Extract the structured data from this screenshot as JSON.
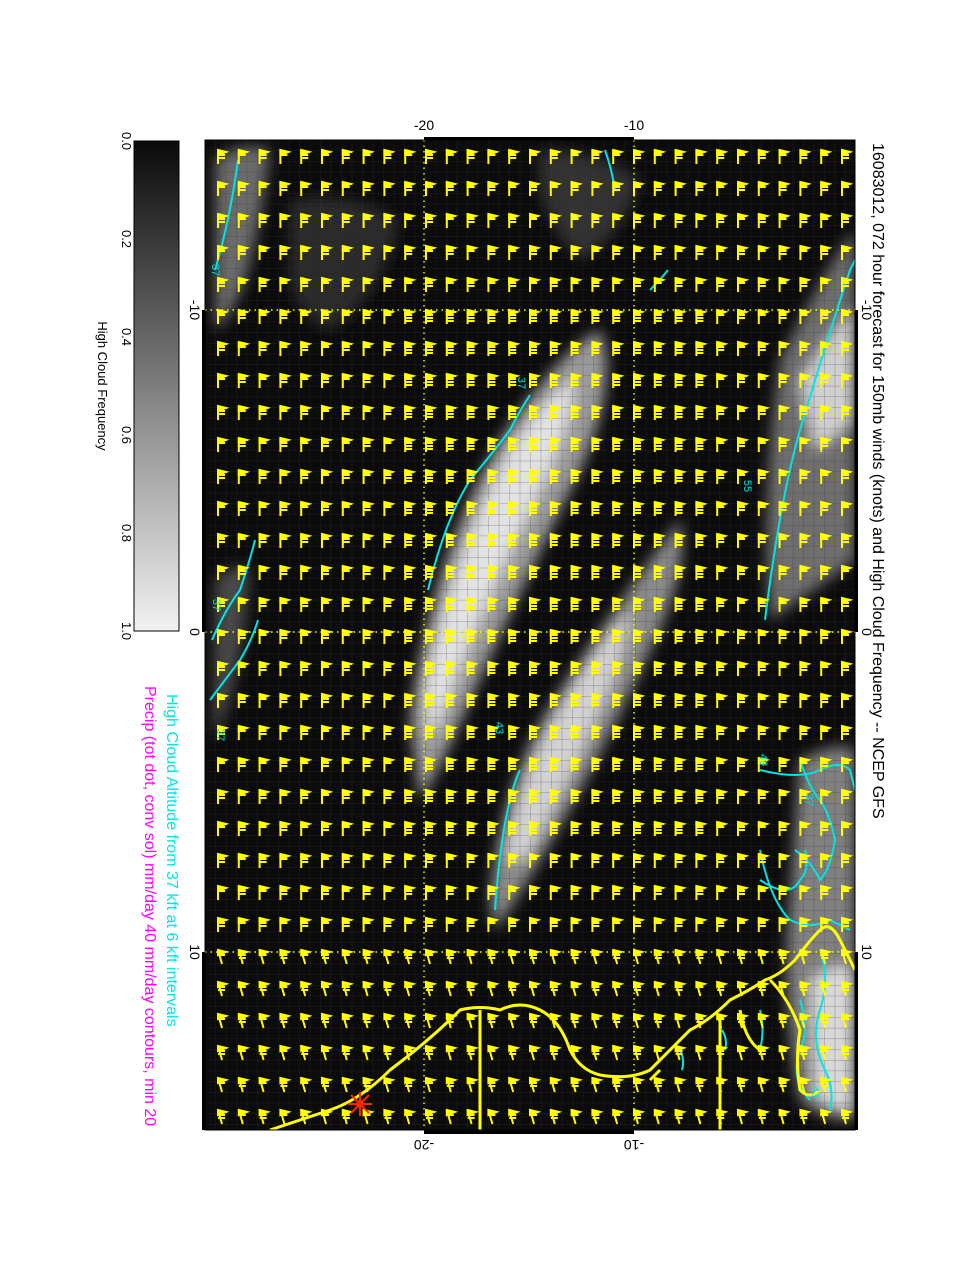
{
  "title": "16083012, 072 hour forecast for 150mb winds (knots) and High Cloud Frequency -- NCEP GFS",
  "subtitle_cyan": "High Cloud Altitude from 37 kft at 6 kft intervals",
  "subtitle_magenta": "Precip (tot dot, conv sol) mm/day 40 mm/day contours, min 20",
  "colorbar": {
    "label": "High Cloud Frequency",
    "ticks": [
      "0.0",
      "0.2",
      "0.4",
      "0.6",
      "0.8",
      "1.0"
    ]
  },
  "axes": {
    "top_ticks": [
      "-20",
      "-10"
    ],
    "bottom_ticks": [
      "-20",
      "-10"
    ],
    "left_ticks": [
      "-10",
      "0",
      "10"
    ],
    "right_ticks": [
      "-10",
      "0",
      "10"
    ]
  },
  "contour_labels": [
    "37",
    "37",
    "37",
    "55",
    "37",
    "43",
    "49",
    "37",
    "43"
  ],
  "colors": {
    "background": "#0b0b0b",
    "cloud_light": "#e6e6e6",
    "wind_barbs": "#ffff00",
    "coastline": "#ffff00",
    "contour": "#00e5e5",
    "precip_text": "#ff00ff",
    "marker": "#ff2200"
  },
  "marker_icon": "red-star-icon"
}
